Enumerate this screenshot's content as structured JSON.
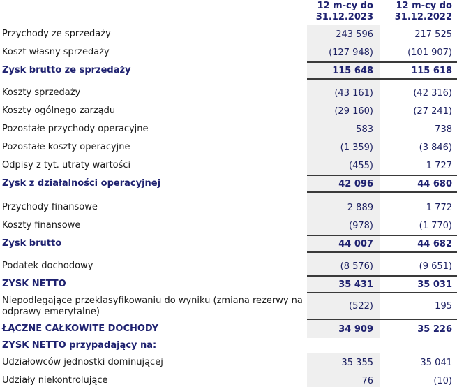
{
  "colors": {
    "accent_navy": "#1f2270",
    "gray_column_bg": "#efefef",
    "rule_color": "#3a3a3a",
    "label_color": "#1a1a1a",
    "number_color": "#1d2162"
  },
  "header": {
    "col_2023": {
      "line1": "12 m-cy do",
      "line2": "31.12.2023"
    },
    "col_2022": {
      "line1": "12 m-cy do",
      "line2": "31.12.2022"
    }
  },
  "chart_data": {
    "type": "table",
    "columns": [
      "",
      "12 m-cy do 31.12.2023",
      "12 m-cy do 31.12.2022"
    ],
    "rows": [
      {
        "label": "Przychody ze sprzedaży",
        "v2023": "243 596",
        "v2022": "217 525"
      },
      {
        "label": "Koszt własny sprzedaży",
        "v2023": "(127 948)",
        "v2022": "(101 907)"
      },
      {
        "label": "Zysk brutto ze sprzedaży",
        "v2023": "115 648",
        "v2022": "115 618",
        "emphasis": true,
        "border_top": true,
        "border_bottom": true,
        "spacer_after": 6
      },
      {
        "label": "Koszty sprzedaży",
        "v2023": "(43 161)",
        "v2022": "(42 316)"
      },
      {
        "label": "Koszty ogólnego zarządu",
        "v2023": "(29 160)",
        "v2022": "(27 241)"
      },
      {
        "label": "Pozostałe przychody operacyjne",
        "v2023": "583",
        "v2022": "738"
      },
      {
        "label": "Pozostałe koszty operacyjne",
        "v2023": "(1 359)",
        "v2022": "(3 846)"
      },
      {
        "label": "Odpisy z tyt. utraty wartości",
        "v2023": "(455)",
        "v2022": "1 727"
      },
      {
        "label": "Zysk z działalności operacyjnej",
        "v2023": "42 096",
        "v2022": "44 680",
        "emphasis": true,
        "border_top": true,
        "border_bottom": true,
        "spacer_after": 8
      },
      {
        "label": "Przychody finansowe",
        "v2023": "2 889",
        "v2022": "1 772"
      },
      {
        "label": "Koszty finansowe",
        "v2023": "(978)",
        "v2022": "(1 770)"
      },
      {
        "label": "Zysk brutto",
        "v2023": "44 007",
        "v2022": "44 682",
        "emphasis": true,
        "border_top": true,
        "border_bottom": true,
        "spacer_after": 6
      },
      {
        "label": "Podatek dochodowy",
        "v2023": "(8 576)",
        "v2022": "(9 651)"
      },
      {
        "label": "ZYSK NETTO",
        "v2023": "35 431",
        "v2022": "35 031",
        "emphasis": true,
        "border_top": true,
        "border_bottom": true
      },
      {
        "label": "Niepodlegające przeklasyfikowaniu do wyniku (zmiana rezerwy na odprawy emerytalne)",
        "v2023": "(522)",
        "v2022": "195",
        "border_bottom": true,
        "wrap": true
      },
      {
        "label": "ŁĄCZNE CAŁKOWITE DOCHODY",
        "v2023": "34 909",
        "v2022": "35 226",
        "emphasis": true
      },
      {
        "label": "ZYSK NETTO przypadający na:",
        "v2023": "",
        "v2022": "",
        "emphasis": true,
        "no_bg": true,
        "short": true
      },
      {
        "label": "Udziałowców jednostki dominującej",
        "v2023": "35 355",
        "v2022": "35 041"
      },
      {
        "label": "Udziały niekontrolujące",
        "v2023": "76",
        "v2022": "(10)"
      }
    ]
  }
}
